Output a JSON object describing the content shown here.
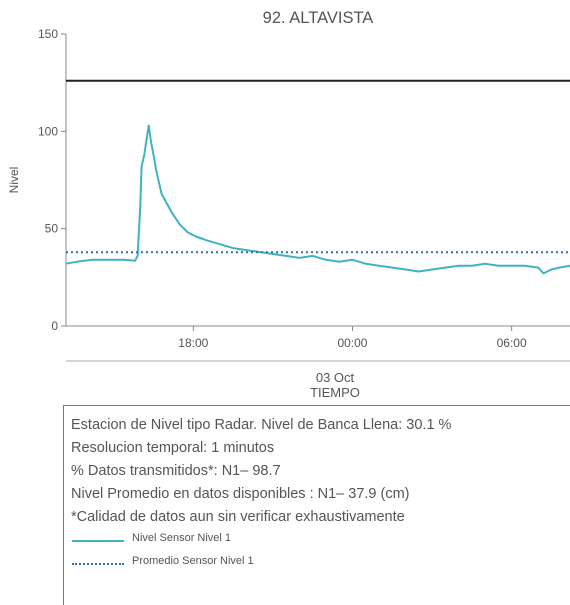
{
  "chart_data": {
    "type": "line",
    "title": "92. ALTAVISTA",
    "ylabel": "Nivel",
    "xlabel": "TIEMPO",
    "date_label": "03 Oct",
    "ylim": [
      0,
      150
    ],
    "yticks": [
      0,
      50,
      100,
      150
    ],
    "xticks": [
      {
        "label": "18:00",
        "hour": 18
      },
      {
        "label": "00:00",
        "hour": 24
      },
      {
        "label": "06:00",
        "hour": 30
      }
    ],
    "xlim_hours": [
      13.2,
      32.2
    ],
    "threshold_line": {
      "value": 126,
      "color": "#222222"
    },
    "series": [
      {
        "name": "Nivel Sensor Nivel 1",
        "color": "#3fb3bf",
        "style": "solid",
        "points": [
          [
            13.2,
            32
          ],
          [
            13.6,
            33
          ],
          [
            14.2,
            34
          ],
          [
            14.8,
            34
          ],
          [
            15.4,
            34
          ],
          [
            15.8,
            33.5
          ],
          [
            15.9,
            36
          ],
          [
            16.0,
            62
          ],
          [
            16.05,
            82
          ],
          [
            16.15,
            88
          ],
          [
            16.25,
            97
          ],
          [
            16.32,
            103
          ],
          [
            16.4,
            95
          ],
          [
            16.5,
            88
          ],
          [
            16.6,
            80
          ],
          [
            16.8,
            68
          ],
          [
            17.0,
            63
          ],
          [
            17.2,
            58
          ],
          [
            17.5,
            52
          ],
          [
            17.8,
            48
          ],
          [
            18.1,
            46
          ],
          [
            18.5,
            44
          ],
          [
            19.0,
            42
          ],
          [
            19.5,
            40
          ],
          [
            20.0,
            39
          ],
          [
            20.5,
            38
          ],
          [
            21.0,
            37
          ],
          [
            21.5,
            36
          ],
          [
            22.0,
            35
          ],
          [
            22.5,
            36
          ],
          [
            23.0,
            34
          ],
          [
            23.5,
            33
          ],
          [
            24.0,
            34
          ],
          [
            24.5,
            32
          ],
          [
            25.0,
            31
          ],
          [
            25.5,
            30
          ],
          [
            26.0,
            29
          ],
          [
            26.5,
            28
          ],
          [
            27.0,
            29
          ],
          [
            27.5,
            30
          ],
          [
            28.0,
            31
          ],
          [
            28.5,
            31
          ],
          [
            29.0,
            32
          ],
          [
            29.5,
            31
          ],
          [
            30.0,
            31
          ],
          [
            30.5,
            31
          ],
          [
            31.0,
            30
          ],
          [
            31.2,
            27
          ],
          [
            31.5,
            29
          ],
          [
            31.8,
            30
          ],
          [
            32.2,
            31
          ]
        ]
      },
      {
        "name": "Promedio Sensor Nivel 1",
        "color": "#2e6fb0",
        "style": "dotted",
        "value": 37.9
      }
    ]
  },
  "info": {
    "line1": "Estacion de Nivel tipo Radar. Nivel de Banca Llena: 30.1 %",
    "line2": "Resolucion temporal: 1 minutos",
    "line3": "% Datos transmitidos*: N1– 98.7",
    "line4": "Nivel Promedio en datos disponibles : N1– 37.9 (cm)",
    "line5": "*Calidad de datos aun sin verificar exhaustivamente"
  },
  "legend": [
    {
      "label": "Nivel Sensor Nivel 1",
      "style": "solid",
      "color": "#3fb3bf"
    },
    {
      "label": "Promedio Sensor Nivel 1",
      "style": "dotted",
      "color": "#2e6fb0"
    }
  ]
}
